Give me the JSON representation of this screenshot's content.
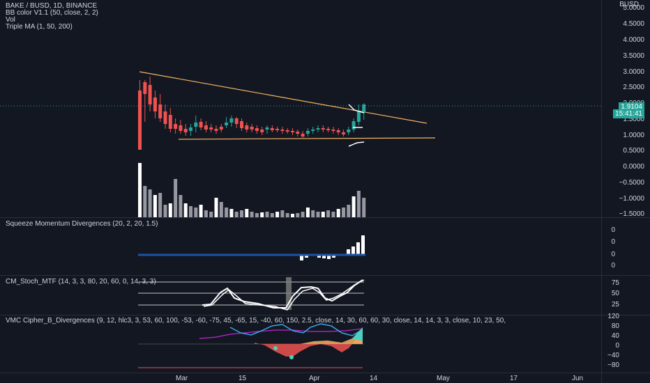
{
  "chart": {
    "symbol_line": "BAKE / BUSD, 1D, BINANCE",
    "indicator1": "BB color V1.1 (50, close, 2, 2)",
    "indicator2": "Vol",
    "indicator3": "Triple MA (1, 50, 200)",
    "currency": "BUSD",
    "last_price": "1.9104",
    "countdown": "15:41:41",
    "up_color": "#26a69a",
    "down_color": "#ef5350",
    "trendline_color": "#f5b461"
  },
  "price_axis": [
    "5.0000",
    "4.5000",
    "4.0000",
    "3.5000",
    "3.0000",
    "2.5000",
    "2.0000",
    "1.5000",
    "1.0000",
    "0.5000",
    "0.0000",
    "−0.5000",
    "−1.0000",
    "−1.5000"
  ],
  "squeeze": {
    "title": "Squeeze Momentum Divergences (20, 2, 20, 1.5)",
    "axis": [
      "0",
      "0",
      "0",
      "0"
    ]
  },
  "stoch": {
    "title": "CM_Stoch_MTF (14, 3, 3, 80, 20, 60, 0, 14, 3, 3)",
    "axis": [
      "75",
      "50",
      "25"
    ]
  },
  "cipher": {
    "title": "VMC Cipher_B_Divergences (9, 12, hlc3, 3, 53, 60, 100, -53, -60, -75, 45, -65, 15, -40, 60, 150, 2.5, close, 14, 30, 60, 60, 30, close, 14, 14, 3, 3, close, 10, 23, 50,",
    "axis": [
      "120",
      "80",
      "40",
      "0",
      "−40",
      "−80"
    ]
  },
  "time_axis": [
    "Mar",
    "15",
    "Apr",
    "14",
    "May",
    "17",
    "Jun"
  ]
}
